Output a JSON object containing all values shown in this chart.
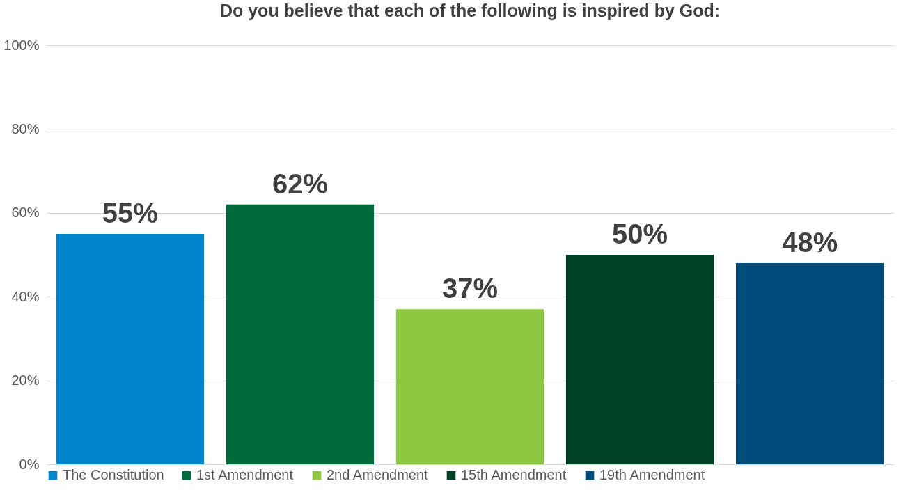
{
  "chart_data": {
    "type": "bar",
    "title": "Do you believe that each of the following is inspired by God:",
    "categories": [
      null,
      null,
      null,
      null,
      null
    ],
    "series": [
      {
        "name": "The Constitution",
        "color": "#0085ca",
        "values": [
          55,
          null,
          null,
          null,
          null
        ],
        "value_labels": [
          "55%",
          null,
          null,
          null,
          null
        ]
      },
      {
        "name": "1st Amendment",
        "color": "#006b3a",
        "values": [
          null,
          62,
          null,
          null,
          null
        ],
        "value_labels": [
          null,
          "62%",
          null,
          null,
          null
        ]
      },
      {
        "name": "2nd Amendment",
        "color": "#8dc63f",
        "values": [
          null,
          null,
          37,
          null,
          null
        ],
        "value_labels": [
          null,
          null,
          "37%",
          null,
          null
        ]
      },
      {
        "name": "15th Amendment",
        "color": "#004225",
        "values": [
          null,
          null,
          null,
          50,
          null
        ],
        "value_labels": [
          null,
          null,
          null,
          "50%",
          null
        ]
      },
      {
        "name": "19th Amendment",
        "color": "#004c7a",
        "values": [
          null,
          null,
          null,
          null,
          48
        ],
        "value_labels": [
          null,
          null,
          null,
          null,
          "48%"
        ]
      }
    ],
    "ylim": [
      0,
      100
    ],
    "yticks": [
      {
        "value": 0,
        "label": "0%"
      },
      {
        "value": 20,
        "label": "20%"
      },
      {
        "value": 40,
        "label": "40%"
      },
      {
        "value": 60,
        "label": "60%"
      },
      {
        "value": 80,
        "label": "80%"
      },
      {
        "value": 100,
        "label": "100%"
      }
    ],
    "grid": "y",
    "legend": "bottom",
    "tick_labels": "y"
  }
}
